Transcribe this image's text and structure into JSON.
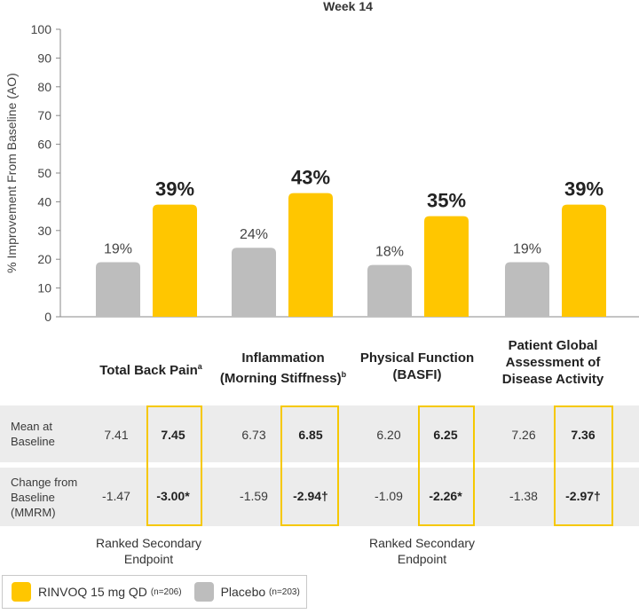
{
  "chart_data": {
    "type": "bar",
    "title": "Week 14",
    "ylabel": "% Improvement From Baseline (AO)",
    "ylim": [
      0,
      100
    ],
    "yticks": [
      0,
      10,
      20,
      30,
      40,
      50,
      60,
      70,
      80,
      90,
      100
    ],
    "categories": [
      "Total Back Pain",
      "Inflammation (Morning Stiffness)",
      "Physical Function (BASFI)",
      "Patient Global Assessment of Disease Activity"
    ],
    "series": [
      {
        "name": "Placebo",
        "color": "#bdbdbd",
        "values": [
          19,
          24,
          18,
          19
        ],
        "labels": [
          "19%",
          "24%",
          "18%",
          "19%"
        ]
      },
      {
        "name": "RINVOQ 15 mg QD",
        "color": "#ffc600",
        "values": [
          39,
          43,
          35,
          39
        ],
        "labels": [
          "39%",
          "43%",
          "35%",
          "39%"
        ]
      }
    ]
  },
  "category_labels": [
    {
      "line1": "Total Back Pain",
      "sup": "a",
      "line2": ""
    },
    {
      "line1": "Inflammation",
      "line2": "(Morning Stiffness)",
      "sup": "b"
    },
    {
      "line1": "Physical Function",
      "line2": "(BASFI)",
      "sup": ""
    },
    {
      "line1": "Patient Global",
      "line2": "Assessment of",
      "line3": "Disease Activity",
      "sup": ""
    }
  ],
  "table": {
    "rows": [
      {
        "label_lines": [
          "Mean at",
          "Baseline"
        ],
        "placebo": [
          "7.41",
          "6.73",
          "6.20",
          "7.26"
        ],
        "rinvoq": [
          "7.45",
          "6.85",
          "6.25",
          "7.36"
        ]
      },
      {
        "label_lines": [
          "Change from",
          "Baseline",
          "(MMRM)"
        ],
        "placebo": [
          "-1.47",
          "-1.59",
          "-1.09",
          "-1.38"
        ],
        "rinvoq": [
          "-3.00*",
          "-2.94†",
          "-2.26*",
          "-2.97†"
        ]
      }
    ]
  },
  "endpoints": [
    {
      "line1": "Ranked Secondary",
      "line2": "Endpoint"
    },
    {
      "line1": "Ranked Secondary",
      "line2": "Endpoint"
    }
  ],
  "legend": {
    "rinvoq_label": "RINVOQ 15 mg QD",
    "rinvoq_n": "(n=206)",
    "placebo_label": "Placebo",
    "placebo_n": "(n=203)"
  },
  "colors": {
    "rinvoq": "#ffc600",
    "placebo": "#bdbdbd",
    "highlight": "#f6c800"
  }
}
